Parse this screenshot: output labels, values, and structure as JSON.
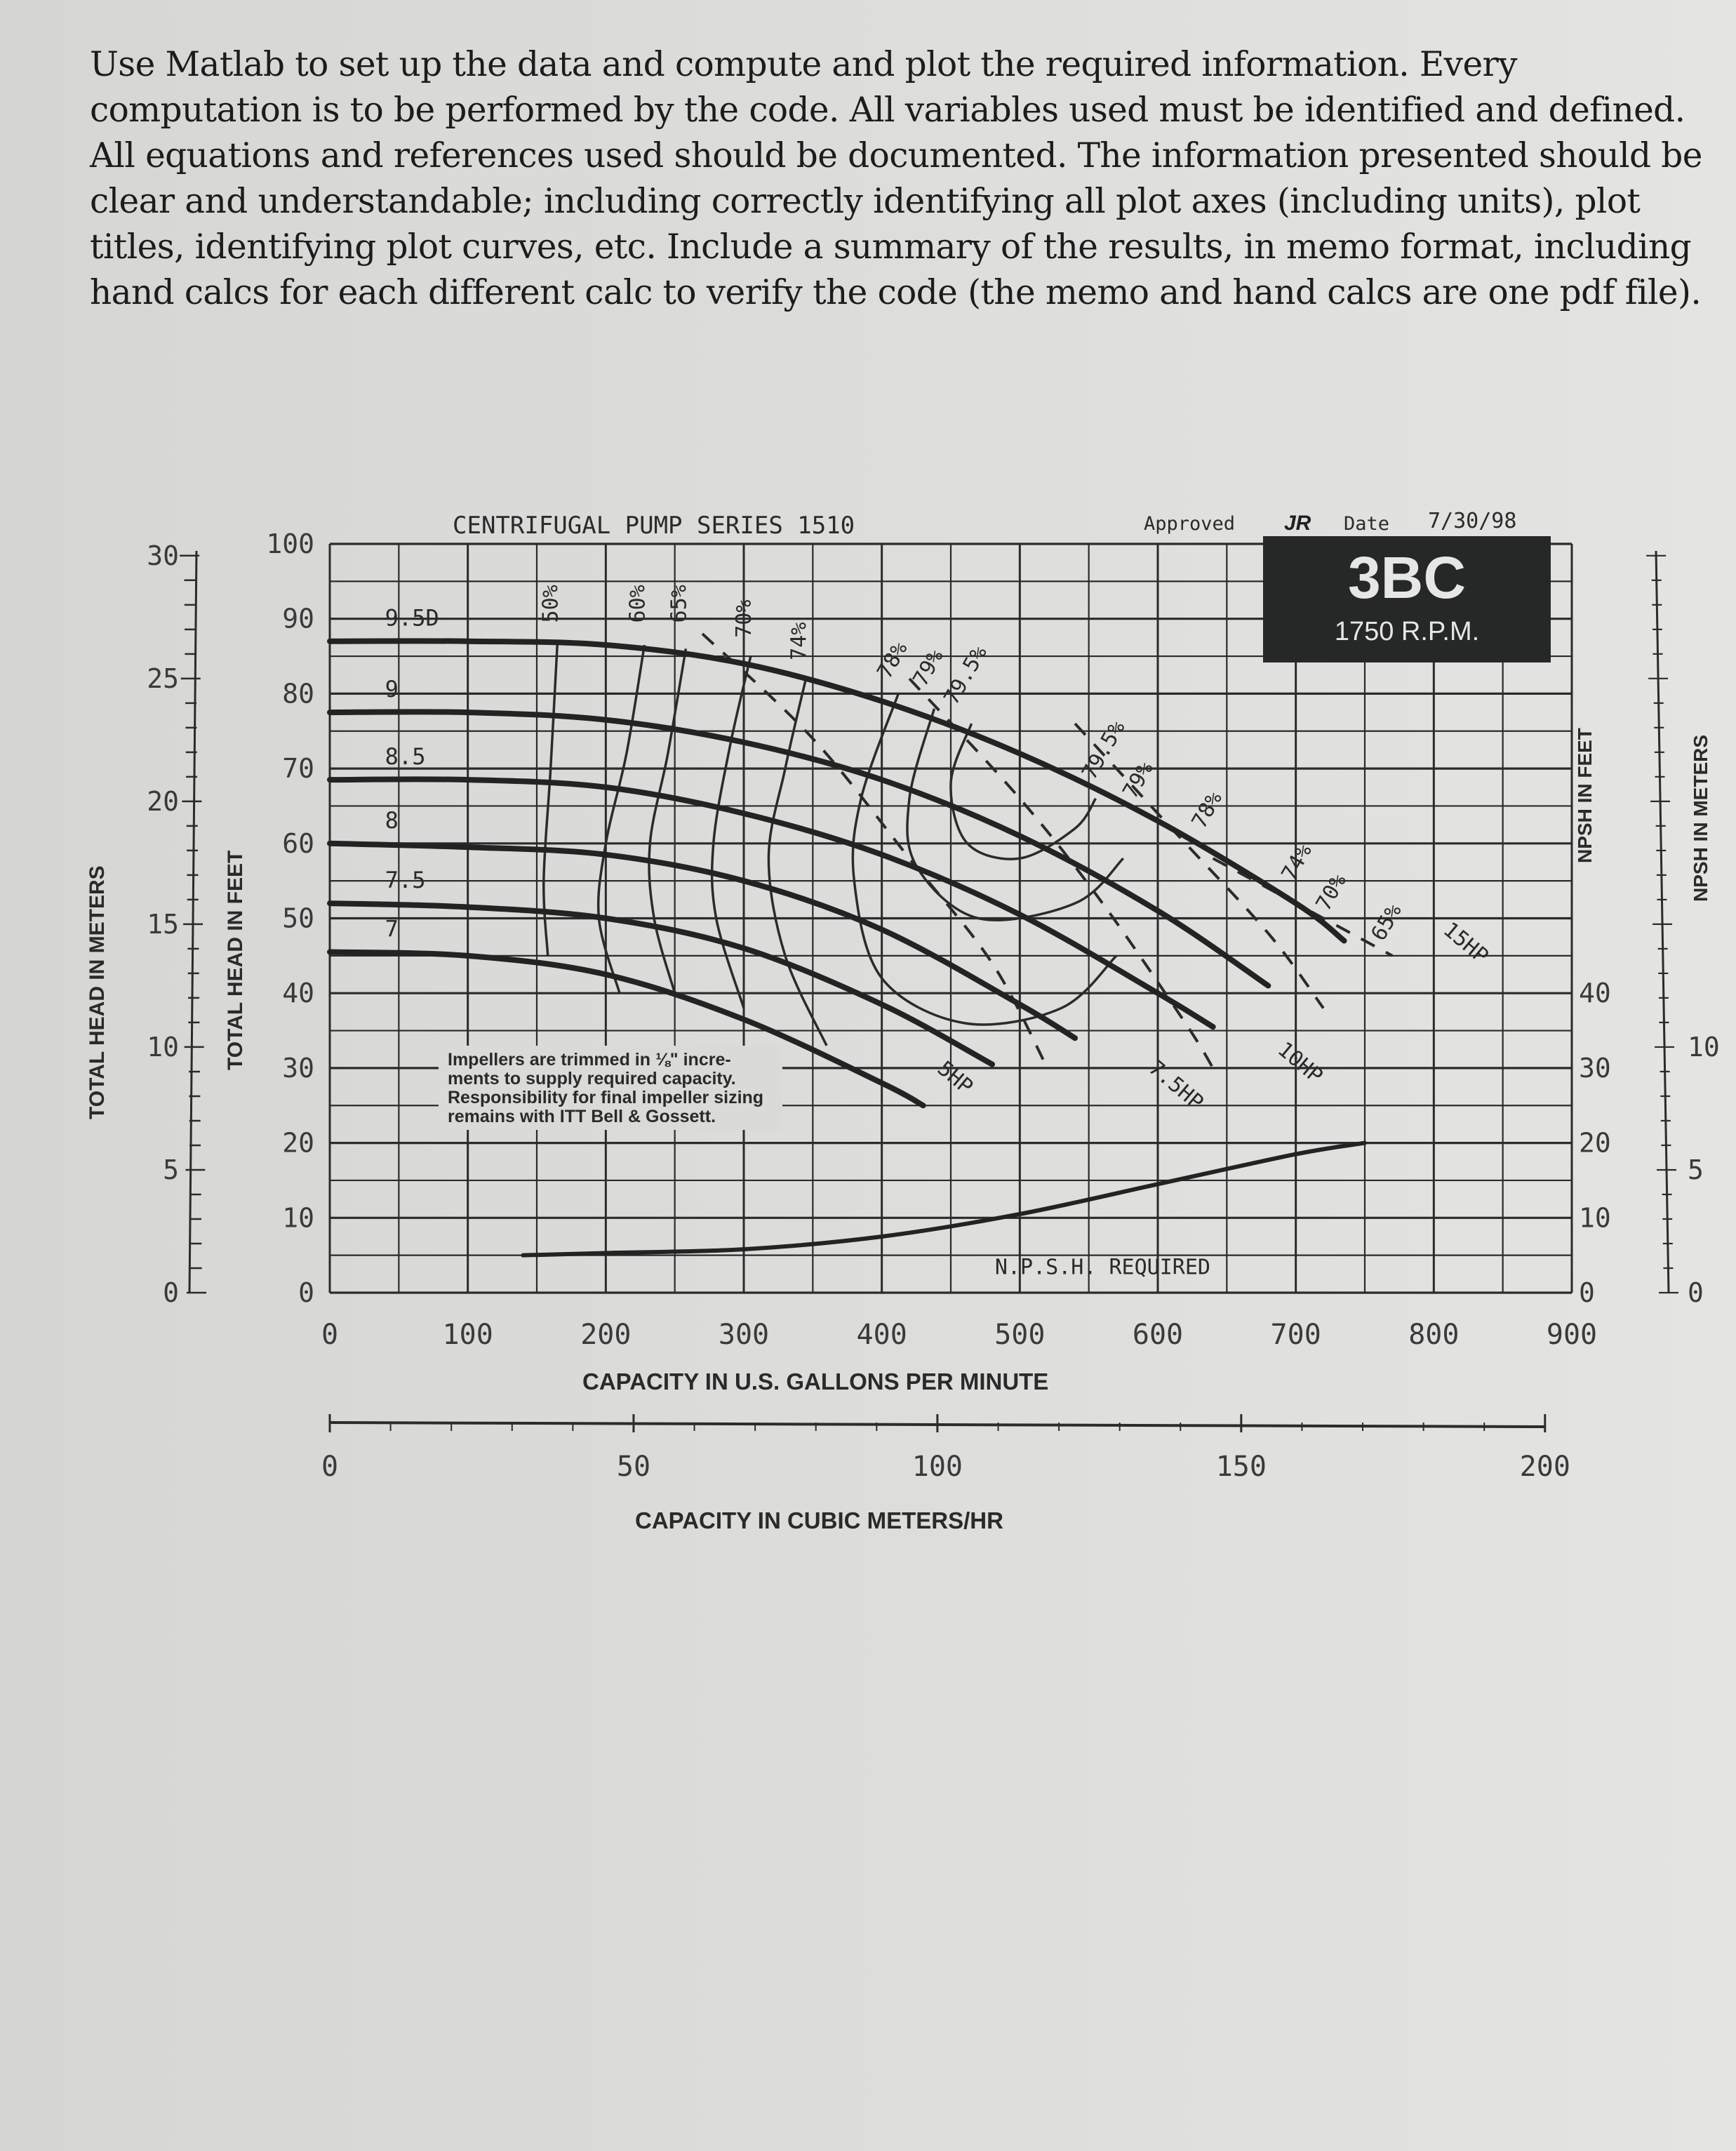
{
  "instructions": {
    "lines": [
      "Use Matlab to set up the data and compute and plot the required information.  Every",
      "computation is to be performed by the code. All variables used must be identified and defined.",
      "All equations and references used should be documented.  The information presented should be",
      "clear and understandable; including correctly identifying all plot axes (including units), plot",
      "titles, identifying plot curves, etc. Include a summary of the results, in memo format, including",
      "hand calcs for each different calc to verify the code (the memo and hand calcs are one pdf file)."
    ]
  },
  "chart_header": {
    "series_title": "CENTRIFUGAL PUMP SERIES 1510",
    "approved_label": "Approved",
    "approved_initials": "JR",
    "date_label": "Date",
    "date_value": "7/30/98",
    "model": "3BC",
    "speed": "1750 R.P.M."
  },
  "note": {
    "lines": [
      "Impellers are trimmed in ⅛\" incre-",
      "ments to supply required capacity.",
      "Responsibility for final impeller sizing",
      "remains with ITT Bell & Gossett."
    ]
  },
  "chart_data": {
    "type": "line",
    "title": "CENTRIFUGAL PUMP SERIES 1510 — 3BC, 1750 R.P.M.",
    "xlabel": "CAPACITY IN U.S. GALLONS PER MINUTE",
    "xlabel_secondary": "CAPACITY IN CUBIC METERS/HR",
    "ylabel": "TOTAL HEAD IN FEET",
    "ylabel_secondary": "TOTAL HEAD IN METERS",
    "y2label": "NPSH IN FEET",
    "y2label_secondary": "NPSH IN METERS",
    "xlim": [
      0,
      900
    ],
    "ylim": [
      0,
      100
    ],
    "grid": true,
    "x_ticks": [
      "0",
      "100",
      "200",
      "300",
      "400",
      "500",
      "600",
      "700",
      "800",
      "900"
    ],
    "x2_ticks": [
      "0",
      "50",
      "100",
      "150",
      "200"
    ],
    "y_ticks_feet": [
      "0",
      "10",
      "20",
      "30",
      "40",
      "50",
      "60",
      "70",
      "80",
      "90",
      "100"
    ],
    "y_ticks_meters": [
      "0",
      "5",
      "10",
      "15",
      "20",
      "25",
      "30"
    ],
    "npsh_ticks_feet": [
      "0",
      "10",
      "20",
      "30",
      "40"
    ],
    "npsh_ticks_meters": [
      "0",
      "5",
      "10"
    ],
    "series": [
      {
        "name": "9.50 in impeller",
        "label": "9.5D",
        "x": [
          0,
          100,
          200,
          300,
          400,
          500,
          600,
          700,
          735
        ],
        "y": [
          87,
          87,
          86.5,
          84,
          79,
          72,
          63,
          52,
          47
        ]
      },
      {
        "name": "9 in impeller",
        "label": "9",
        "x": [
          0,
          100,
          200,
          300,
          400,
          500,
          600,
          680
        ],
        "y": [
          77.5,
          77.5,
          76.5,
          73.5,
          68.5,
          61,
          51,
          41
        ]
      },
      {
        "name": "8.5 in impeller",
        "label": "8.5",
        "x": [
          0,
          100,
          200,
          300,
          400,
          500,
          600,
          640
        ],
        "y": [
          68.5,
          68.5,
          67.5,
          64,
          58.5,
          50.5,
          40,
          35.5
        ]
      },
      {
        "name": "8 in impeller",
        "label": "8",
        "x": [
          0,
          100,
          200,
          300,
          400,
          500,
          540
        ],
        "y": [
          60,
          59.5,
          58.5,
          55,
          48.5,
          38.5,
          34
        ]
      },
      {
        "name": "7.5 in impeller",
        "label": "7.5",
        "x": [
          0,
          100,
          200,
          300,
          400,
          480
        ],
        "y": [
          52,
          51.5,
          50,
          46,
          38.5,
          30.5
        ]
      },
      {
        "name": "7 in impeller",
        "label": "7",
        "x": [
          0,
          100,
          200,
          300,
          400,
          430
        ],
        "y": [
          45.5,
          45,
          42.5,
          36.5,
          28,
          25
        ]
      },
      {
        "name": "NPSH required",
        "label": "N.P.S.H. REQUIRED",
        "axis": "npsh_feet",
        "x": [
          140,
          200,
          300,
          400,
          500,
          600,
          700,
          750
        ],
        "y": [
          5,
          5.3,
          5.8,
          7.5,
          10.5,
          14.5,
          18.5,
          20
        ]
      }
    ],
    "efficiency_contours": [
      "50%",
      "60%",
      "65%",
      "70%",
      "74%",
      "78%",
      "79%",
      "79.5%",
      "79.5%",
      "79%",
      "78%",
      "74%",
      "70%",
      "65%"
    ],
    "horsepower_lines": [
      "5HP",
      "7.5HP",
      "10HP",
      "15HP"
    ],
    "annotations": [
      {
        "text": "50%",
        "x": 165,
        "y": 92
      },
      {
        "text": "60%",
        "x": 228,
        "y": 92
      },
      {
        "text": "65%",
        "x": 258,
        "y": 92
      },
      {
        "text": "70%",
        "x": 305,
        "y": 90
      },
      {
        "text": "74%",
        "x": 345,
        "y": 87
      },
      {
        "text": "78%",
        "x": 412,
        "y": 84
      },
      {
        "text": "79%",
        "x": 438,
        "y": 83
      },
      {
        "text": "79.5%",
        "x": 465,
        "y": 82
      },
      {
        "text": "79.5%",
        "x": 565,
        "y": 72
      },
      {
        "text": "79%",
        "x": 590,
        "y": 68
      },
      {
        "text": "78%",
        "x": 640,
        "y": 64
      },
      {
        "text": "74%",
        "x": 705,
        "y": 57
      },
      {
        "text": "70%",
        "x": 730,
        "y": 53
      },
      {
        "text": "65%",
        "x": 770,
        "y": 49
      },
      {
        "text": "15HP",
        "x": 820,
        "y": 46
      },
      {
        "text": "10HP",
        "x": 700,
        "y": 30
      },
      {
        "text": "7.5HP",
        "x": 610,
        "y": 27
      },
      {
        "text": "5HP",
        "x": 450,
        "y": 28
      }
    ]
  }
}
